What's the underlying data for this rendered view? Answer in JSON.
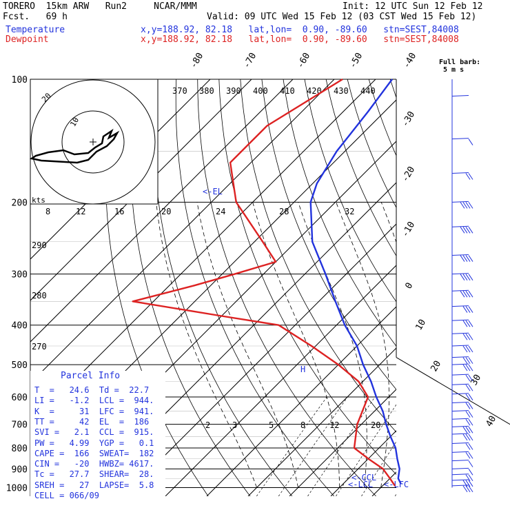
{
  "header": {
    "title": "TORERO  15km ARW   Run2     NCAR/MMM",
    "init": "Init: 12 UTC Sun 12 Feb 12",
    "fcst": "Fcst.   69 h",
    "valid": "Valid: 09 UTC Wed 15 Feb 12 (03 CST Wed 15 Feb 12)",
    "temp_label": "Temperature",
    "temp_loc": "x,y=188.92, 82.18   lat,lon=  0.90, -89.60   stn=SEST,84008",
    "dew_label": "Dewpoint",
    "dew_loc": "x,y=188.92, 82.18   lat,lon=  0.90, -89.60   stn=SEST,84008"
  },
  "colors": {
    "temperature": "#2233dd",
    "dewpoint": "#dd2222",
    "text": "#000000"
  },
  "chart_data": {
    "type": "line",
    "pressure_ticks": [
      "100",
      "200",
      "300",
      "400",
      "500",
      "600",
      "700",
      "800",
      "900",
      "1000"
    ],
    "pressure_values": [
      100,
      200,
      300,
      400,
      500,
      600,
      700,
      800,
      900,
      1000
    ],
    "isotherm_labels": [
      "-80",
      "-70",
      "-60",
      "-50",
      "-40",
      "-30",
      "-20",
      "-10",
      "0",
      "10",
      "20",
      "30",
      "40"
    ],
    "theta_labels": [
      "370",
      "380",
      "390",
      "400",
      "410",
      "420",
      "430",
      "440"
    ],
    "dry_adiabat_labels": [
      "290",
      "280",
      "270"
    ],
    "mixing_ratio_labels": [
      "2",
      "3",
      "5",
      "8",
      "12",
      "20"
    ],
    "hodograph": {
      "unit_label": "kts",
      "ring_labels": [
        "10",
        "20"
      ],
      "speed_labels": [
        "8",
        "12",
        "16",
        "20",
        "24",
        "28",
        "32"
      ]
    },
    "series": [
      {
        "name": "Temperature",
        "color": "#2233dd",
        "points": [
          [
            100,
            -76
          ],
          [
            120,
            -74
          ],
          [
            150,
            -72
          ],
          [
            180,
            -69
          ],
          [
            200,
            -66
          ],
          [
            250,
            -56
          ],
          [
            300,
            -45
          ],
          [
            350,
            -36
          ],
          [
            400,
            -28
          ],
          [
            450,
            -20
          ],
          [
            500,
            -14
          ],
          [
            550,
            -8
          ],
          [
            600,
            -3
          ],
          [
            650,
            2
          ],
          [
            700,
            6
          ],
          [
            750,
            10
          ],
          [
            800,
            14
          ],
          [
            850,
            17
          ],
          [
            900,
            20
          ],
          [
            950,
            22
          ],
          [
            980,
            24
          ]
        ]
      },
      {
        "name": "Dewpoint",
        "color": "#dd2222",
        "points": [
          [
            100,
            -88
          ],
          [
            130,
            -95
          ],
          [
            160,
            -95
          ],
          [
            200,
            -84
          ],
          [
            250,
            -68
          ],
          [
            280,
            -60
          ],
          [
            300,
            -67
          ],
          [
            320,
            -74
          ],
          [
            350,
            -85
          ],
          [
            380,
            -60
          ],
          [
            400,
            -44
          ],
          [
            450,
            -31
          ],
          [
            500,
            -20
          ],
          [
            550,
            -11
          ],
          [
            600,
            -5
          ],
          [
            700,
            -1
          ],
          [
            800,
            4
          ],
          [
            850,
            10
          ],
          [
            900,
            16
          ],
          [
            950,
            20
          ],
          [
            990,
            23
          ]
        ]
      }
    ],
    "annotations": [
      "<-EL",
      "<-CCL",
      "<-LCL",
      "<-LFC",
      "H"
    ],
    "wind_barb_title": "Full barb:",
    "wind_barb_unit": "5 m s",
    "wind_barb_levels": [
      110,
      140,
      170,
      200,
      230,
      270,
      300,
      330,
      360,
      390,
      420,
      450,
      480,
      500,
      530,
      560,
      590,
      620,
      650,
      680,
      710,
      740,
      780,
      820,
      860,
      900,
      930,
      960,
      990
    ],
    "wind_barb_full_counts": [
      0,
      1,
      2,
      4,
      4,
      4,
      4,
      4,
      3,
      3,
      3,
      3,
      3,
      3,
      2,
      2,
      2,
      2,
      2,
      2,
      3,
      3,
      2,
      2,
      1,
      1,
      2,
      3,
      3
    ]
  },
  "parcel": {
    "title": "Parcel Info",
    "rows": [
      "T  =   24.6  Td =  22.7",
      "LI =   -1.2  LCL =  944.",
      "K  =     31  LFC =  941.",
      "TT =     42  EL  =  186",
      "SVI =   2.1  CCL =  915.",
      "PW =   4.99  YGP =   0.1",
      "CAPE =  166  SWEAT=  182",
      "CIN =   -20  HWBZ= 4617.",
      "Tc =   27.7  SHEAR=  28.",
      "SREH =   27  LAPSE=  5.8",
      "CELL = 066/09"
    ]
  }
}
